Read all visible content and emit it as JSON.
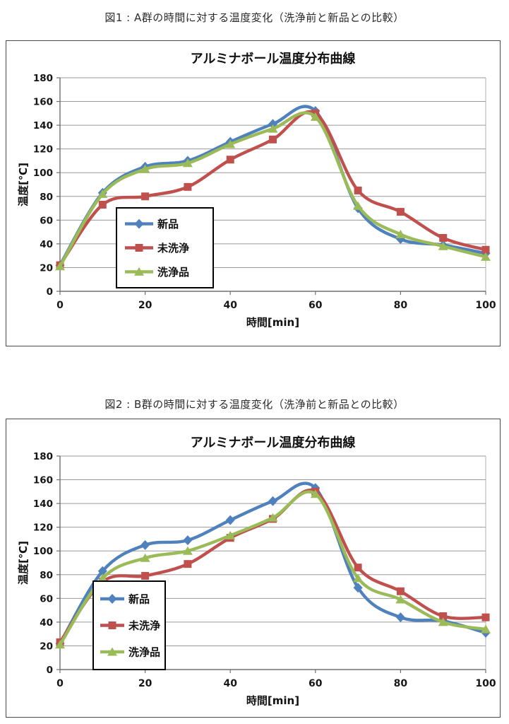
{
  "page": {
    "background": "#ffffff"
  },
  "figures": [
    {
      "caption": "図1 : A群の時間に対する温度変化（洗浄前と新品との比較）"
    },
    {
      "caption": "図2 : B群の時間に対する温度変化（洗浄前と新品との比較）"
    }
  ],
  "chart_data": [
    {
      "type": "line",
      "title": "アルミナボール温度分布曲線",
      "xlabel": "時間[min]",
      "ylabel": "温度[℃]",
      "x": [
        0,
        10,
        20,
        30,
        40,
        50,
        60,
        70,
        80,
        90,
        100
      ],
      "xticks": [
        0,
        20,
        40,
        60,
        80,
        100
      ],
      "ylim": [
        0,
        180
      ],
      "ytick_step": 20,
      "grid": true,
      "smooth": true,
      "legend_position": "inside-lower-left",
      "series": [
        {
          "name": "新品",
          "color": "#4F81BD",
          "marker": "diamond",
          "values": [
            22,
            83,
            105,
            110,
            126,
            141,
            152,
            70,
            44,
            39,
            32
          ]
        },
        {
          "name": "未洗浄",
          "color": "#C0504D",
          "marker": "square",
          "values": [
            22,
            73,
            80,
            88,
            111,
            128,
            150,
            85,
            67,
            45,
            35
          ]
        },
        {
          "name": "洗浄品",
          "color": "#9BBB59",
          "marker": "triangle",
          "values": [
            21,
            82,
            103,
            108,
            124,
            137,
            147,
            72,
            48,
            38,
            29
          ]
        }
      ]
    },
    {
      "type": "line",
      "title": "アルミナボール温度分布曲線",
      "xlabel": "時間[min]",
      "ylabel": "温度[℃]",
      "x": [
        0,
        10,
        20,
        30,
        40,
        50,
        60,
        70,
        80,
        90,
        100
      ],
      "xticks": [
        0,
        20,
        40,
        60,
        80,
        100
      ],
      "ylim": [
        0,
        180
      ],
      "ytick_step": 20,
      "grid": true,
      "smooth": true,
      "legend_position": "inside-lower-left",
      "series": [
        {
          "name": "新品",
          "color": "#4F81BD",
          "marker": "diamond",
          "values": [
            22,
            83,
            105,
            109,
            126,
            142,
            153,
            69,
            44,
            41,
            31
          ]
        },
        {
          "name": "未洗浄",
          "color": "#C0504D",
          "marker": "square",
          "values": [
            23,
            74,
            79,
            89,
            111,
            127,
            150,
            86,
            66,
            45,
            44
          ]
        },
        {
          "name": "洗浄品",
          "color": "#9BBB59",
          "marker": "triangle",
          "values": [
            21,
            77,
            94,
            100,
            113,
            128,
            148,
            77,
            59,
            40,
            34
          ]
        }
      ]
    }
  ]
}
